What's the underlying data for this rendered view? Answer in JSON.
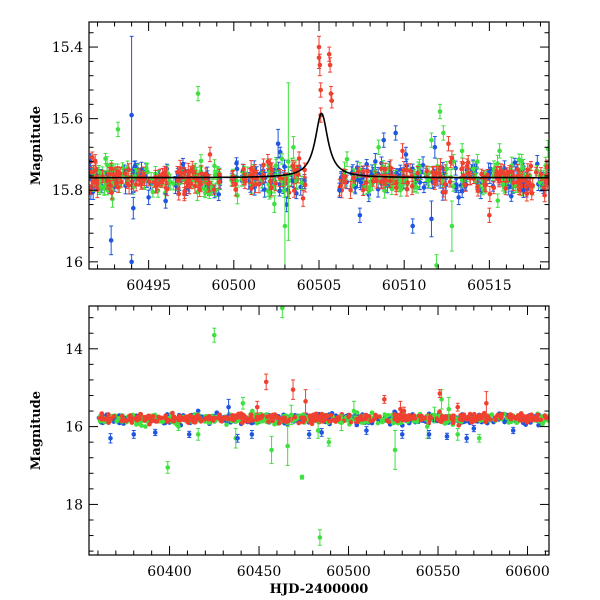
{
  "chart_data": [
    {
      "type": "scatter",
      "id": "top",
      "ylabel": "Magnitude",
      "xlabel": "",
      "xlim": [
        60491.5,
        60518.5
      ],
      "ylim": [
        16.02,
        15.33
      ],
      "y_inverted": true,
      "xticks": [
        60495,
        60500,
        60505,
        60510,
        60515
      ],
      "yticks": [
        15.4,
        15.6,
        15.8,
        16
      ],
      "ytick_labels": [
        "15.4",
        "15.6",
        "15.8",
        "16"
      ],
      "colors": {
        "red": "#f04030",
        "green": "#40e040",
        "blue": "#1f55e0"
      },
      "model": {
        "baseline": 15.765,
        "peak_t": 60505.15,
        "peak_mag": 15.585,
        "width_days": 0.45
      },
      "series": [
        {
          "color": "blue",
          "points": [
            [
              60492.8,
              15.94,
              0.04
            ],
            [
              60494.0,
              15.59,
              0.22
            ],
            [
              60494.1,
              15.85,
              0.03
            ],
            [
              60494.0,
              16.0,
              0.02
            ],
            [
              60495.0,
              15.82,
              0.02
            ],
            [
              60496.0,
              15.83,
              0.02
            ],
            [
              60502.6,
              15.67,
              0.04
            ],
            [
              60503.1,
              15.84,
              0.02
            ],
            [
              60506.2,
              15.8,
              0.02
            ],
            [
              60507.4,
              15.87,
              0.02
            ],
            [
              60508.8,
              15.66,
              0.02
            ],
            [
              60509.5,
              15.64,
              0.02
            ],
            [
              60510.1,
              15.7,
              0.02
            ],
            [
              60510.5,
              15.9,
              0.02
            ],
            [
              60511.6,
              15.88,
              0.05
            ],
            [
              60511.8,
              15.68,
              0.03
            ],
            [
              60513.2,
              15.82,
              0.02
            ],
            [
              60517.0,
              15.8,
              0.02
            ]
          ]
        },
        {
          "color": "green",
          "points": [
            [
              60493.2,
              15.63,
              0.02
            ],
            [
              60497.9,
              15.53,
              0.02
            ],
            [
              60503.0,
              15.9,
              0.14
            ],
            [
              60503.2,
              15.72,
              0.22
            ],
            [
              60503.5,
              15.68,
              0.03
            ],
            [
              60508.5,
              15.68,
              0.02
            ],
            [
              60511.6,
              15.66,
              0.02
            ],
            [
              60512.1,
              15.58,
              0.02
            ],
            [
              60512.3,
              15.64,
              0.02
            ],
            [
              60512.5,
              15.74,
              0.02
            ],
            [
              60512.8,
              15.9,
              0.07
            ],
            [
              60512.9,
              15.72,
              0.02
            ],
            [
              60513.4,
              15.69,
              0.02
            ],
            [
              60514.3,
              15.72,
              0.02
            ],
            [
              60515.6,
              15.69,
              0.02
            ],
            [
              60516.9,
              15.72,
              0.02
            ],
            [
              60511.9,
              16.01,
              0.03
            ]
          ]
        },
        {
          "color": "red",
          "points": [
            [
              60505.0,
              15.4,
              0.03
            ],
            [
              60505.0,
              15.43,
              0.03
            ],
            [
              60505.05,
              15.45,
              0.03
            ],
            [
              60505.1,
              15.52,
              0.02
            ],
            [
              60505.1,
              15.59,
              0.02
            ],
            [
              60505.6,
              15.42,
              0.02
            ],
            [
              60505.65,
              15.45,
              0.02
            ],
            [
              60505.7,
              15.53,
              0.02
            ],
            [
              60505.75,
              15.55,
              0.02
            ],
            [
              60498.6,
              15.7,
              0.02
            ],
            [
              60502.0,
              15.72,
              0.02
            ],
            [
              60509.9,
              15.69,
              0.02
            ],
            [
              60512.6,
              15.67,
              0.02
            ],
            [
              60512.8,
              15.71,
              0.02
            ],
            [
              60515.0,
              15.87,
              0.02
            ],
            [
              60517.2,
              15.81,
              0.02
            ],
            [
              60518.4,
              15.78,
              0.02
            ]
          ]
        }
      ]
    },
    {
      "type": "scatter",
      "id": "bottom",
      "ylabel": "Magnitude",
      "xlabel": "HJD-2400000",
      "xlim": [
        60355,
        60612
      ],
      "ylim": [
        19.3,
        12.9
      ],
      "y_inverted": true,
      "xticks": [
        60400,
        60450,
        60500,
        60550,
        60600
      ],
      "yticks": [
        14,
        16,
        18
      ],
      "ytick_labels": [
        "14",
        "16",
        "18"
      ],
      "colors": {
        "red": "#f04030",
        "green": "#40e040",
        "blue": "#1f55e0"
      },
      "series": [
        {
          "color": "green",
          "points": [
            [
              60399,
              17.05,
              0.15
            ],
            [
              60425,
              13.65,
              0.18
            ],
            [
              60463,
              12.95,
              0.25
            ],
            [
              60484,
              18.85,
              0.2
            ],
            [
              60474,
              17.3,
              0.05
            ],
            [
              60457,
              16.6,
              0.35
            ],
            [
              60466,
              16.5,
              0.5
            ],
            [
              60468,
              15.7,
              0.25
            ],
            [
              60416,
              16.2,
              0.15
            ],
            [
              60437,
              16.3,
              0.25
            ],
            [
              60441,
              15.4,
              0.15
            ],
            [
              60489,
              16.4,
              0.1
            ],
            [
              60503,
              15.6,
              0.25
            ],
            [
              60526,
              16.6,
              0.5
            ],
            [
              60544,
              16.0,
              0.3
            ],
            [
              60548,
              15.7,
              0.2
            ],
            [
              60552,
              15.3,
              0.25
            ],
            [
              60556,
              15.55,
              0.3
            ],
            [
              60561,
              16.2,
              0.15
            ],
            [
              60573,
              16.3,
              0.1
            ],
            [
              60483,
              16.1,
              0.2
            ],
            [
              60496,
              15.9,
              0.2
            ],
            [
              60405,
              16.0,
              0.1
            ]
          ]
        },
        {
          "color": "red",
          "points": [
            [
              60454,
              14.85,
              0.2
            ],
            [
              60469,
              15.05,
              0.25
            ],
            [
              60476,
              15.35,
              0.3
            ],
            [
              60520,
              15.3,
              0.1
            ],
            [
              60529,
              15.55,
              0.2
            ],
            [
              60577,
              15.4,
              0.3
            ],
            [
              60531,
              15.6,
              0.1
            ],
            [
              60449,
              15.5,
              0.15
            ],
            [
              60551,
              15.15,
              0.1
            ],
            [
              60561,
              15.5,
              0.1
            ]
          ]
        },
        {
          "color": "blue",
          "points": [
            [
              60367,
              16.3,
              0.12
            ],
            [
              60380,
              16.2,
              0.1
            ],
            [
              60392,
              16.15,
              0.08
            ],
            [
              60411,
              16.2,
              0.08
            ],
            [
              60433,
              15.5,
              0.2
            ],
            [
              60438,
              16.3,
              0.1
            ],
            [
              60446,
              16.2,
              0.1
            ],
            [
              60478,
              16.2,
              0.1
            ],
            [
              60485,
              16.15,
              0.1
            ],
            [
              60510,
              16.1,
              0.1
            ],
            [
              60530,
              16.2,
              0.1
            ],
            [
              60545,
              16.2,
              0.1
            ],
            [
              60555,
              16.25,
              0.08
            ],
            [
              60566,
              16.3,
              0.1
            ],
            [
              60570,
              16.05,
              0.08
            ],
            [
              60592,
              16.1,
              0.08
            ]
          ]
        }
      ]
    }
  ]
}
